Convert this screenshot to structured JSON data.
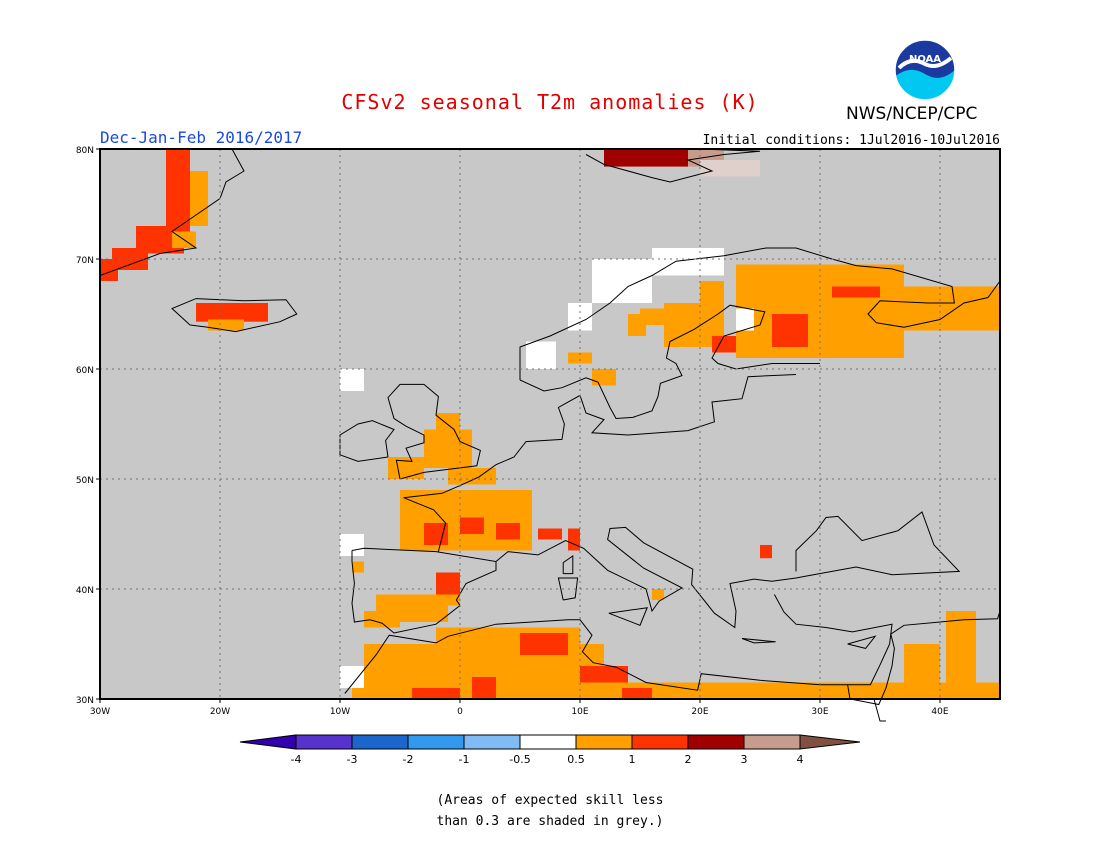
{
  "title": "CFSv2 seasonal T2m anomalies (K)",
  "season": "Dec-Jan-Feb 2016/2017",
  "initial_conditions": "Initial conditions: 1Jul2016-10Jul2016",
  "agency": "NWS/NCEP/CPC",
  "logo_text": "NOAA",
  "lat_labels": [
    "80N",
    "70N",
    "60N",
    "50N",
    "40N",
    "30N"
  ],
  "lon_labels": [
    "30W",
    "20W",
    "10W",
    "0",
    "10E",
    "20E",
    "30E",
    "40E"
  ],
  "legend": {
    "labels": [
      "-4",
      "-3",
      "-2",
      "-1",
      "-0.5",
      "0.5",
      "1",
      "2",
      "3",
      "4"
    ],
    "colors": [
      "#3300b0",
      "#5533cc",
      "#1a66cc",
      "#3399ee",
      "#80bbf5",
      "#ffffff",
      "#ffa000",
      "#ff3300",
      "#a00000",
      "#c89c8c",
      "#805040"
    ]
  },
  "note": "(Areas of expected skill less\nthan 0.3 are shaded in grey.)",
  "colors": {
    "title": "#e00000",
    "season": "#1a4ae0",
    "text": "#000000",
    "grey_skill": "#c8c8c8",
    "no_anomaly": "#ffffff",
    "warm_05_1": "#ffa000",
    "warm_1_2": "#ff3300",
    "warm_2_3": "#a00000",
    "warm_3_4": "#c89c8c"
  },
  "map": {
    "lon_range": [
      -30,
      45
    ],
    "lat_range": [
      30,
      80
    ],
    "grid_lon_step": 10,
    "grid_lat_step": 10,
    "region": "Europe, North Africa, Greenland coast"
  }
}
